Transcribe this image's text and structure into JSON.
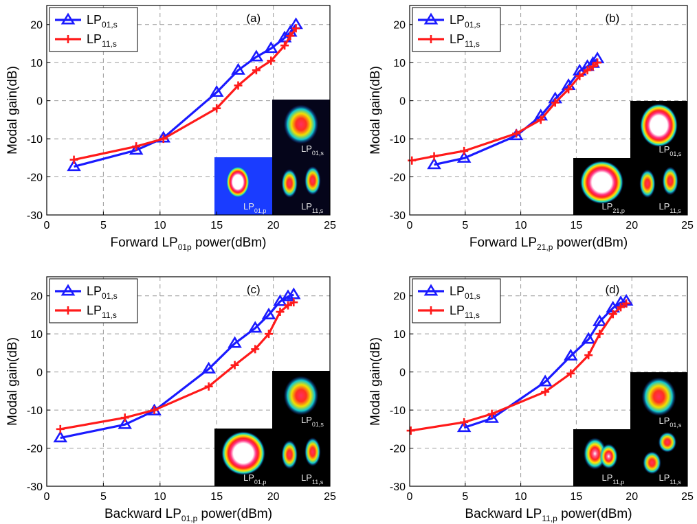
{
  "chart_data": [
    {
      "type": "line",
      "panel_label": "(a)",
      "xlabel": {
        "pre": "Forward LP",
        "sub": "01p",
        "post": " power(dBm)"
      },
      "ylabel": "Modal gain(dB)",
      "xlim": [
        0,
        25
      ],
      "ylim": [
        -30,
        25
      ],
      "xticks": [
        0,
        5,
        10,
        15,
        20,
        25
      ],
      "yticks": [
        -30,
        -20,
        -10,
        0,
        10,
        20
      ],
      "grid": true,
      "legend_position": "top-left",
      "series": [
        {
          "name": {
            "pre": "LP",
            "sub": "01,s"
          },
          "color": "#1a1aff",
          "marker": "triangle",
          "x": [
            2.4,
            7.9,
            10.3,
            15.0,
            16.9,
            18.5,
            19.8,
            21.0,
            21.5,
            22.0
          ],
          "y": [
            -17.3,
            -13.0,
            -9.8,
            2.2,
            8.0,
            11.5,
            13.7,
            16.5,
            18.0,
            20.0
          ]
        },
        {
          "name": {
            "pre": "LP",
            "sub": "11,s"
          },
          "color": "#ff1a1a",
          "marker": "plus",
          "x": [
            2.4,
            7.9,
            10.3,
            15.0,
            16.9,
            18.5,
            19.8,
            21.0,
            21.5,
            22.0
          ],
          "y": [
            -15.5,
            -12.0,
            -10.0,
            -2.0,
            4.0,
            8.0,
            10.5,
            14.5,
            17.0,
            19.0
          ]
        }
      ],
      "insets": [
        {
          "label_pre": "LP",
          "label_sub": "01,s",
          "pattern": "blob",
          "bg": "#05051a"
        },
        {
          "label_pre": "LP",
          "label_sub": "01,p",
          "pattern": "ring-small",
          "bg": "#1a3cff"
        },
        {
          "label_pre": "LP",
          "label_sub": "11,s",
          "pattern": "two-lobe",
          "bg": "#05051a"
        }
      ]
    },
    {
      "type": "line",
      "panel_label": "(b)",
      "xlabel": {
        "pre": "Forward LP",
        "sub": "21,p",
        "post": " power(dBm)"
      },
      "ylabel": "Modal gain(dB)",
      "xlim": [
        0,
        25
      ],
      "ylim": [
        -30,
        25
      ],
      "xticks": [
        0,
        5,
        10,
        15,
        20,
        25
      ],
      "yticks": [
        -30,
        -20,
        -10,
        0,
        10,
        20
      ],
      "grid": true,
      "legend_position": "top-left",
      "series": [
        {
          "name": {
            "pre": "LP",
            "sub": "01,s"
          },
          "color": "#1a1aff",
          "marker": "triangle",
          "x": [
            2.2,
            4.9,
            9.6,
            11.8,
            13.1,
            14.3,
            15.3,
            16.0,
            16.5,
            16.9
          ],
          "y": [
            -16.8,
            -15.1,
            -9.2,
            -4.0,
            0.5,
            4.0,
            7.8,
            9.0,
            9.8,
            11.0
          ]
        },
        {
          "name": {
            "pre": "LP",
            "sub": "11,s"
          },
          "color": "#ff1a1a",
          "marker": "plus",
          "x": [
            0.2,
            2.2,
            4.9,
            9.6,
            11.8,
            13.1,
            14.3,
            15.3,
            16.0,
            16.5,
            16.9
          ],
          "y": [
            -15.7,
            -14.6,
            -13.2,
            -8.6,
            -5.0,
            -0.5,
            3.0,
            6.5,
            8.0,
            9.0,
            10.0
          ]
        }
      ],
      "insets": [
        {
          "label_pre": "LP",
          "label_sub": "01,s",
          "pattern": "ring-thin",
          "bg": "#000000"
        },
        {
          "label_pre": "LP",
          "label_sub": "21,p",
          "pattern": "ring-big",
          "bg": "#000000"
        },
        {
          "label_pre": "LP",
          "label_sub": "11,s",
          "pattern": "two-lobe",
          "bg": "#000000"
        }
      ]
    },
    {
      "type": "line",
      "panel_label": "(c)",
      "xlabel": {
        "pre": "Backward LP",
        "sub": "01,p",
        "post": " power(dBm)"
      },
      "ylabel": "Modal gain(dB)",
      "xlim": [
        0,
        25
      ],
      "ylim": [
        -30,
        25
      ],
      "xticks": [
        0,
        5,
        10,
        15,
        20,
        25
      ],
      "yticks": [
        -30,
        -20,
        -10,
        0,
        10,
        20
      ],
      "grid": true,
      "legend_position": "top-left",
      "series": [
        {
          "name": {
            "pre": "LP",
            "sub": "01,s"
          },
          "color": "#1a1aff",
          "marker": "triangle",
          "x": [
            1.2,
            6.9,
            9.5,
            14.3,
            16.6,
            18.4,
            19.6,
            20.6,
            21.3,
            21.8
          ],
          "y": [
            -17.3,
            -13.8,
            -10.2,
            0.8,
            7.5,
            11.5,
            15.0,
            18.5,
            19.8,
            20.3
          ]
        },
        {
          "name": {
            "pre": "LP",
            "sub": "11,s"
          },
          "color": "#ff1a1a",
          "marker": "plus",
          "x": [
            1.2,
            6.9,
            9.5,
            14.3,
            16.6,
            18.4,
            19.6,
            20.6,
            21.3,
            21.8
          ],
          "y": [
            -15.0,
            -12.0,
            -10.0,
            -3.8,
            1.8,
            6.0,
            10.0,
            15.8,
            17.5,
            18.3
          ]
        }
      ],
      "insets": [
        {
          "label_pre": "LP",
          "label_sub": "01,s",
          "pattern": "blob",
          "bg": "#000000"
        },
        {
          "label_pre": "LP",
          "label_sub": "01,p",
          "pattern": "ring-big",
          "bg": "#000000"
        },
        {
          "label_pre": "LP",
          "label_sub": "11,s",
          "pattern": "two-lobe",
          "bg": "#000000"
        }
      ]
    },
    {
      "type": "line",
      "panel_label": "(d)",
      "xlabel": {
        "pre": "Backward LP",
        "sub": "11,p",
        "post": " power(dBm)"
      },
      "ylabel": "Modal gain(dB)",
      "xlim": [
        0,
        25
      ],
      "ylim": [
        -30,
        25
      ],
      "xticks": [
        0,
        5,
        10,
        15,
        20,
        25
      ],
      "yticks": [
        -30,
        -20,
        -10,
        0,
        10,
        20
      ],
      "grid": true,
      "legend_position": "top-left",
      "series": [
        {
          "name": {
            "pre": "LP",
            "sub": "01,s"
          },
          "color": "#1a1aff",
          "marker": "triangle",
          "x": [
            4.9,
            7.4,
            12.2,
            14.5,
            16.1,
            17.1,
            18.3,
            19.0,
            19.5
          ],
          "y": [
            -14.6,
            -12.2,
            -2.6,
            4.2,
            8.6,
            13.2,
            16.8,
            18.2,
            18.6
          ]
        },
        {
          "name": {
            "pre": "LP",
            "sub": "11,s"
          },
          "color": "#ff1a1a",
          "marker": "plus",
          "x": [
            0.1,
            4.9,
            7.4,
            12.2,
            14.5,
            16.1,
            17.1,
            18.3,
            19.0,
            19.5
          ],
          "y": [
            -15.4,
            -13.2,
            -11.0,
            -5.2,
            -0.4,
            4.4,
            10.0,
            15.2,
            17.0,
            18.0
          ]
        }
      ],
      "insets": [
        {
          "label_pre": "LP",
          "label_sub": "01,s",
          "pattern": "blob",
          "bg": "#000000"
        },
        {
          "label_pre": "LP",
          "label_sub": "11,p",
          "pattern": "two-lobe-tight",
          "bg": "#000000"
        },
        {
          "label_pre": "LP",
          "label_sub": "11,s",
          "pattern": "two-lobe-diag",
          "bg": "#000000"
        }
      ]
    }
  ]
}
